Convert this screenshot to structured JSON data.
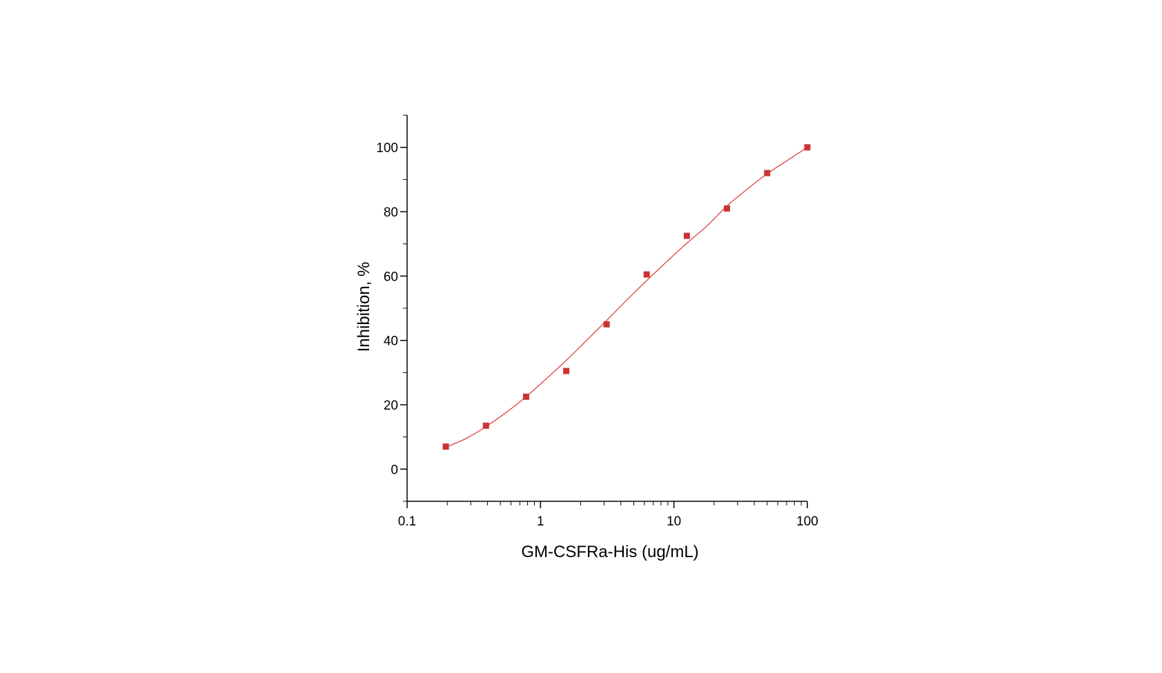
{
  "chart_data": {
    "type": "scatter",
    "title": "",
    "xlabel": "GM-CSFRa-His (ug/mL)",
    "ylabel": "Inhibition, %",
    "x_scale": "log",
    "xlim": [
      0.1,
      100
    ],
    "ylim": [
      -10,
      110
    ],
    "x_ticks": [
      {
        "value": 0.1,
        "label": "0.1"
      },
      {
        "value": 1,
        "label": "1"
      },
      {
        "value": 10,
        "label": "10"
      },
      {
        "value": 100,
        "label": "100"
      }
    ],
    "y_ticks": [
      {
        "value": 0,
        "label": "0"
      },
      {
        "value": 20,
        "label": "20"
      },
      {
        "value": 40,
        "label": "40"
      },
      {
        "value": 60,
        "label": "60"
      },
      {
        "value": 80,
        "label": "80"
      },
      {
        "value": 100,
        "label": "100"
      }
    ],
    "grid": false,
    "legend": "none",
    "marker_color": "#cc3333",
    "fit_color": "#dd4444",
    "series": [
      {
        "points": [
          {
            "x": 0.195,
            "y": 7.0
          },
          {
            "x": 0.39,
            "y": 13.5
          },
          {
            "x": 0.78,
            "y": 22.5
          },
          {
            "x": 1.56,
            "y": 30.5
          },
          {
            "x": 3.13,
            "y": 45.0
          },
          {
            "x": 6.25,
            "y": 60.5
          },
          {
            "x": 12.5,
            "y": 72.5
          },
          {
            "x": 25,
            "y": 81.0
          },
          {
            "x": 50,
            "y": 92.0
          },
          {
            "x": 100,
            "y": 100.0
          }
        ]
      }
    ],
    "fit_curve": {
      "points": [
        {
          "x": 0.195,
          "y": 6.8
        },
        {
          "x": 0.276,
          "y": 9.5
        },
        {
          "x": 0.39,
          "y": 13.2
        },
        {
          "x": 0.552,
          "y": 17.6
        },
        {
          "x": 0.78,
          "y": 22.5
        },
        {
          "x": 1.1,
          "y": 28.0
        },
        {
          "x": 1.56,
          "y": 33.8
        },
        {
          "x": 2.2,
          "y": 39.9
        },
        {
          "x": 3.13,
          "y": 46.2
        },
        {
          "x": 4.42,
          "y": 52.5
        },
        {
          "x": 6.25,
          "y": 58.6
        },
        {
          "x": 8.84,
          "y": 64.5
        },
        {
          "x": 12.5,
          "y": 70.2
        },
        {
          "x": 17.7,
          "y": 75.6
        },
        {
          "x": 25,
          "y": 81.8
        },
        {
          "x": 35.4,
          "y": 87.0
        },
        {
          "x": 50,
          "y": 91.8
        },
        {
          "x": 70.7,
          "y": 95.9
        },
        {
          "x": 100,
          "y": 100.0
        }
      ]
    }
  }
}
